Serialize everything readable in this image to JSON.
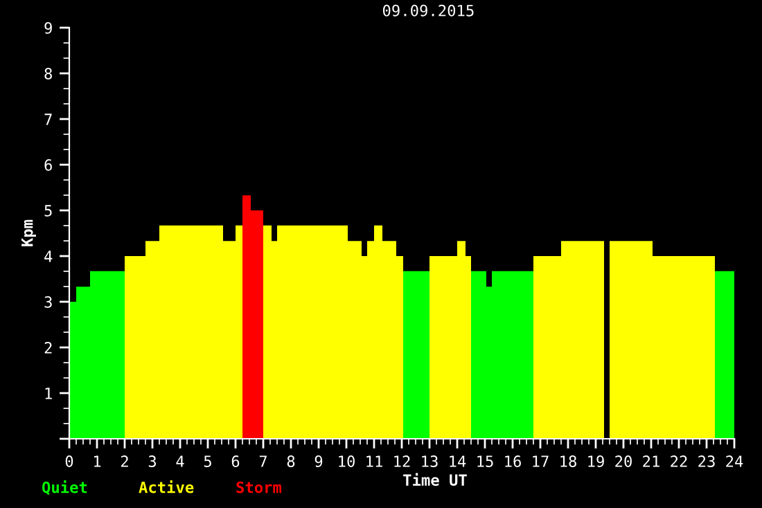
{
  "chart_data": {
    "type": "bar",
    "title": "09.09.2015",
    "xlabel": "Time UT",
    "ylabel": "Kpm",
    "x": [
      0.125,
      0.5,
      1.375,
      2.375,
      3.0,
      4.4,
      5.775,
      6.125,
      6.4,
      6.775,
      7.15,
      7.4,
      8.775,
      10.3,
      10.65,
      10.875,
      11.15,
      11.55,
      11.925,
      12.525,
      13.5,
      14.15,
      14.4,
      14.775,
      15.15,
      16.0,
      17.25,
      18.525,
      19.4,
      20.275,
      22.175,
      23.65
    ],
    "series": [
      {
        "name": "Quiet",
        "color": "#00ff00",
        "values": [
          3.0,
          3.33,
          3.67,
          null,
          null,
          null,
          null,
          null,
          null,
          null,
          null,
          null,
          null,
          null,
          null,
          null,
          null,
          null,
          null,
          3.67,
          null,
          null,
          null,
          3.67,
          3.33,
          3.67,
          null,
          null,
          null,
          null,
          null,
          3.67
        ]
      },
      {
        "name": "Active",
        "color": "#ffff00",
        "values": [
          null,
          null,
          null,
          4.0,
          4.33,
          4.67,
          4.33,
          4.67,
          null,
          null,
          4.67,
          4.33,
          4.67,
          4.33,
          4.0,
          4.33,
          4.67,
          4.33,
          4.0,
          null,
          4.0,
          4.33,
          4.0,
          null,
          null,
          null,
          4.0,
          4.33,
          null,
          4.33,
          4.0,
          null
        ]
      },
      {
        "name": "Storm",
        "color": "#ff0000",
        "values": [
          null,
          null,
          null,
          null,
          null,
          null,
          null,
          null,
          5.33,
          5.0,
          null,
          null,
          null,
          null,
          null,
          null,
          null,
          null,
          null,
          null,
          null,
          null,
          null,
          null,
          null,
          null,
          null,
          null,
          null,
          null,
          null,
          null
        ]
      }
    ],
    "xlim": [
      0,
      24
    ],
    "xticks": [
      0,
      1,
      2,
      3,
      4,
      5,
      6,
      7,
      8,
      9,
      10,
      11,
      12,
      13,
      14,
      15,
      16,
      17,
      18,
      19,
      20,
      21,
      22,
      23,
      24
    ],
    "ylim": [
      0,
      9
    ],
    "yticks": [
      {
        "value": 0,
        "label": null
      },
      1,
      2,
      3,
      4,
      5,
      6,
      7,
      8,
      9
    ],
    "grid": false,
    "legend": "bottom"
  }
}
